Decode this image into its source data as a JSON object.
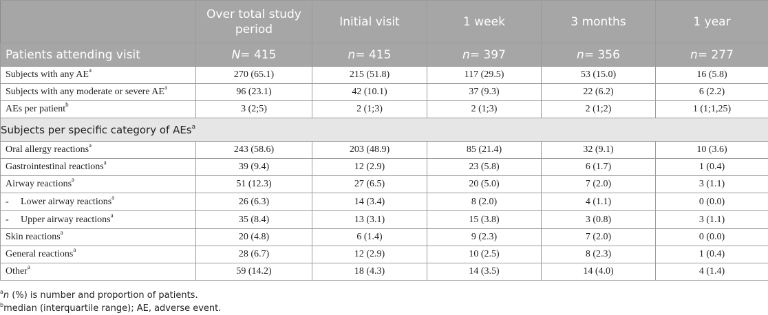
{
  "header": {
    "col0": "",
    "col1": "Over total study period",
    "col2": "Initial visit",
    "col3": "1 week",
    "col4": "3 months",
    "col5": "1 year"
  },
  "attending": {
    "label": "Patients attending visit",
    "cells": [
      {
        "var": "N",
        "val": "= 415"
      },
      {
        "var": "n",
        "val": "= 415"
      },
      {
        "var": "n",
        "val": "= 397"
      },
      {
        "var": "n",
        "val": "= 356"
      },
      {
        "var": "n",
        "val": "= 277"
      }
    ]
  },
  "rows_top": [
    {
      "label": "Subjects with any AE",
      "sup": "a",
      "values": [
        "270 (65.1)",
        "215 (51.8)",
        "117 (29.5)",
        "53 (15.0)",
        "16 (5.8)"
      ]
    },
    {
      "label": "Subjects with any moderate or severe AE",
      "sup": "a",
      "values": [
        "96 (23.1)",
        "42 (10.1)",
        "37 (9.3)",
        "22 (6.2)",
        "6 (2.2)"
      ]
    },
    {
      "label": "AEs per patient",
      "sup": "b",
      "values": [
        "3 (2;5)",
        "2 (1;3)",
        "2 (1;3)",
        "2 (1;2)",
        "1 (1;1,25)"
      ]
    }
  ],
  "section": {
    "label": "Subjects per specific category of AEs",
    "sup": "a"
  },
  "rows_cat": [
    {
      "label": "Oral allergy reactions",
      "sup": "a",
      "values": [
        "243 (58.6)",
        "203 (48.9)",
        "85 (21.4)",
        "32 (9.1)",
        "10 (3.6)"
      ]
    },
    {
      "label": "Gastrointestinal reactions",
      "sup": "a",
      "values": [
        "39 (9.4)",
        "12 (2.9)",
        "23 (5.8)",
        "6 (1.7)",
        "1 (0.4)"
      ]
    },
    {
      "label": "Airway reactions",
      "sup": "a",
      "values": [
        "51 (12.3)",
        "27 (6.5)",
        "20 (5.0)",
        "7 (2.0)",
        "3 (1.1)"
      ]
    },
    {
      "label": "Lower airway reactions",
      "dash": "-",
      "sup": "a",
      "values": [
        "26 (6.3)",
        "14 (3.4)",
        "8 (2.0)",
        "4 (1.1)",
        "0 (0.0)"
      ]
    },
    {
      "label": "Upper airway reactions",
      "dash": "-",
      "sup": "a",
      "values": [
        "35 (8.4)",
        "13 (3.1)",
        "15 (3.8)",
        "3 (0.8)",
        "3 (1.1)"
      ]
    },
    {
      "label": "Skin reactions",
      "sup": "a",
      "values": [
        "20 (4.8)",
        "6 (1.4)",
        "9 (2.3)",
        "7 (2.0)",
        "0 (0.0)"
      ]
    },
    {
      "label": "General reactions",
      "sup": "a",
      "values": [
        "28 (6.7)",
        "12 (2.9)",
        "10 (2.5)",
        "8 (2.3)",
        "1 (0.4)"
      ]
    },
    {
      "label": "Other",
      "sup": "a",
      "values": [
        "59 (14.2)",
        "18 (4.3)",
        "14 (3.5)",
        "14 (4.0)",
        "4 (1.4)"
      ]
    }
  ],
  "footnotes": {
    "a": {
      "sup": "a",
      "var": "n",
      "text": " (%) is number and proportion of patients."
    },
    "b": {
      "sup": "b",
      "text": "median (interquartile range); AE, adverse event."
    }
  }
}
